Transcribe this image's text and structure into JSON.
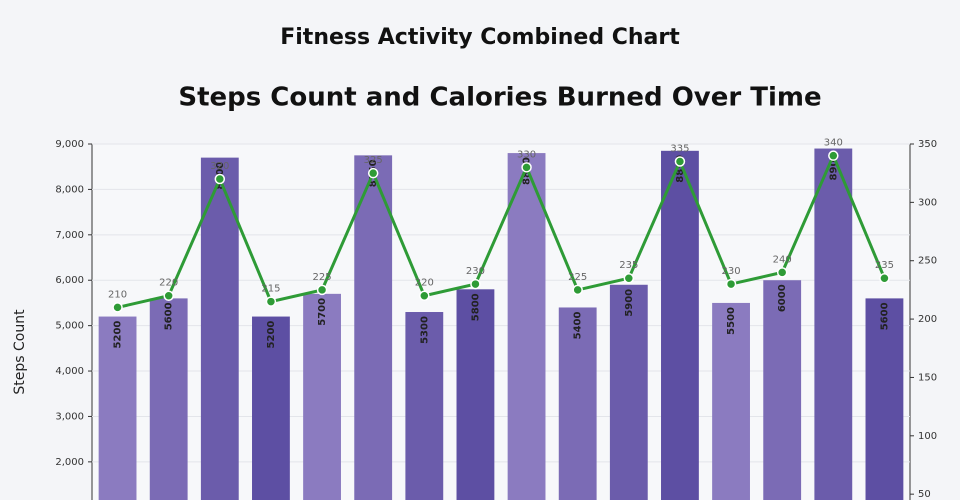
{
  "header": {
    "title": "Fitness Activity Combined Chart"
  },
  "chart_data": {
    "type": "combo",
    "title": "Steps Count and Calories Burned Over Time",
    "y_label": "Steps Count",
    "categories": [
      null,
      null,
      null,
      null,
      null,
      null,
      null,
      null,
      null,
      null,
      null,
      null,
      null,
      null,
      null,
      null
    ],
    "series": [
      {
        "type": "bar",
        "colors": [
          "#8b7bc0",
          "#7b6bb5",
          "#6b5cab",
          "#5d4fa3"
        ],
        "values": [
          5200,
          5600,
          8700,
          5200,
          5700,
          8750,
          5300,
          5800,
          8800,
          5400,
          5900,
          8850,
          5500,
          6000,
          8900,
          5600
        ]
      },
      {
        "type": "line",
        "axis": "y2",
        "color": "#2e9b36",
        "values": [
          210,
          220,
          320,
          215,
          225,
          325,
          220,
          230,
          330,
          225,
          235,
          335,
          230,
          240,
          340,
          235
        ]
      }
    ],
    "ylim": [
      1160,
      9000
    ],
    "yticks": [
      {
        "value": 2000,
        "label": "2,000"
      },
      {
        "value": 3000,
        "label": "3,000"
      },
      {
        "value": 4000,
        "label": "4,000"
      },
      {
        "value": 5000,
        "label": "5,000"
      },
      {
        "value": 6000,
        "label": "6,000"
      },
      {
        "value": 7000,
        "label": "7,000"
      },
      {
        "value": 8000,
        "label": "8,000"
      },
      {
        "value": 9000,
        "label": "9,000"
      }
    ],
    "y2lim": [
      45,
      350
    ],
    "y2ticks": [
      50,
      100,
      150,
      200,
      250,
      300,
      350
    ],
    "grid": true
  }
}
